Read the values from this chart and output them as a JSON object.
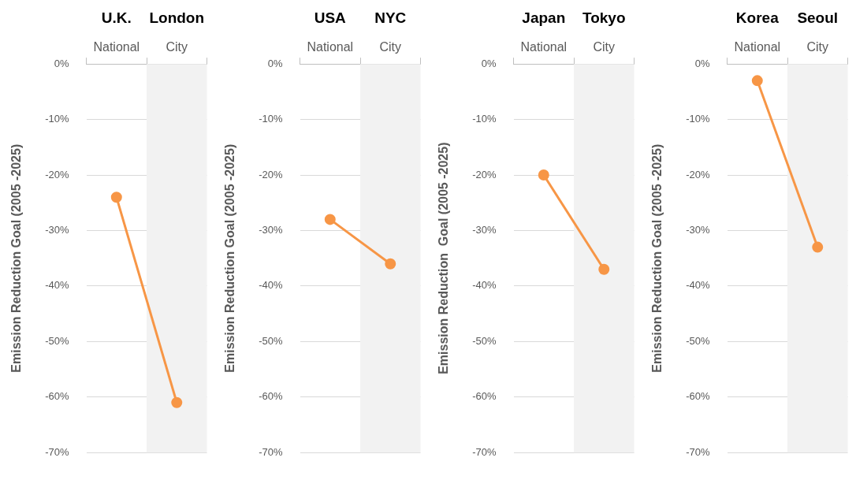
{
  "chart_data": [
    {
      "type": "line",
      "categories": [
        "National",
        "City"
      ],
      "annotations": [
        "U.K.",
        "London"
      ],
      "ylabel": "Emission Reduction Goal (2005 -2025)",
      "series": [
        {
          "color": "#f79646",
          "values": [
            -24,
            -61
          ]
        }
      ],
      "ylim": [
        -70,
        0
      ],
      "yticks": [
        {
          "value": 0,
          "label": "0%"
        },
        {
          "value": -10,
          "label": "-10%"
        },
        {
          "value": -20,
          "label": "-20%"
        },
        {
          "value": -30,
          "label": "-30%"
        },
        {
          "value": -40,
          "label": "-40%"
        },
        {
          "value": -50,
          "label": "-50%"
        },
        {
          "value": -60,
          "label": "-60%"
        },
        {
          "value": -70,
          "label": "-70%"
        }
      ],
      "grid": "y",
      "legend": false,
      "marker": "circle",
      "bands": [
        {
          "axis": "x",
          "from": "City",
          "to": "City",
          "color": "#f2f2f2"
        }
      ]
    },
    {
      "type": "line",
      "categories": [
        "National",
        "City"
      ],
      "annotations": [
        "USA",
        "NYC"
      ],
      "ylabel": "Emission Reduction Goal (2005 -2025)",
      "series": [
        {
          "color": "#f79646",
          "values": [
            -28,
            -36
          ]
        }
      ],
      "ylim": [
        -70,
        0
      ],
      "yticks": [
        {
          "value": 0,
          "label": "0%"
        },
        {
          "value": -10,
          "label": "-10%"
        },
        {
          "value": -20,
          "label": "-20%"
        },
        {
          "value": -30,
          "label": "-30%"
        },
        {
          "value": -40,
          "label": "-40%"
        },
        {
          "value": -50,
          "label": "-50%"
        },
        {
          "value": -60,
          "label": "-60%"
        },
        {
          "value": -70,
          "label": "-70%"
        }
      ],
      "grid": "y",
      "legend": false,
      "marker": "circle",
      "bands": [
        {
          "axis": "x",
          "from": "City",
          "to": "City",
          "color": "#f2f2f2"
        }
      ]
    },
    {
      "type": "line",
      "categories": [
        "National",
        "City"
      ],
      "annotations": [
        "Japan",
        "Tokyo"
      ],
      "ylabel": "Emission Reduction  Goal (2005 -2025)",
      "series": [
        {
          "color": "#f79646",
          "values": [
            -20,
            -37
          ]
        }
      ],
      "ylim": [
        -70,
        0
      ],
      "yticks": [
        {
          "value": 0,
          "label": "0%"
        },
        {
          "value": -10,
          "label": "-10%"
        },
        {
          "value": -20,
          "label": "-20%"
        },
        {
          "value": -30,
          "label": "-30%"
        },
        {
          "value": -40,
          "label": "-40%"
        },
        {
          "value": -50,
          "label": "-50%"
        },
        {
          "value": -60,
          "label": "-60%"
        },
        {
          "value": -70,
          "label": "-70%"
        }
      ],
      "grid": "y",
      "legend": false,
      "marker": "circle",
      "bands": [
        {
          "axis": "x",
          "from": "City",
          "to": "City",
          "color": "#f2f2f2"
        }
      ]
    },
    {
      "type": "line",
      "categories": [
        "National",
        "City"
      ],
      "annotations": [
        "Korea",
        "Seoul"
      ],
      "ylabel": "Emission Reduction Goal (2005 -2025)",
      "series": [
        {
          "color": "#f79646",
          "values": [
            -3,
            -33
          ]
        }
      ],
      "ylim": [
        -70,
        0
      ],
      "yticks": [
        {
          "value": 0,
          "label": "0%"
        },
        {
          "value": -10,
          "label": "-10%"
        },
        {
          "value": -20,
          "label": "-20%"
        },
        {
          "value": -30,
          "label": "-30%"
        },
        {
          "value": -40,
          "label": "-40%"
        },
        {
          "value": -50,
          "label": "-50%"
        },
        {
          "value": -60,
          "label": "-60%"
        },
        {
          "value": -70,
          "label": "-70%"
        }
      ],
      "grid": "y",
      "legend": false,
      "marker": "circle",
      "bands": [
        {
          "axis": "x",
          "from": "City",
          "to": "City",
          "color": "#f2f2f2"
        }
      ]
    }
  ]
}
